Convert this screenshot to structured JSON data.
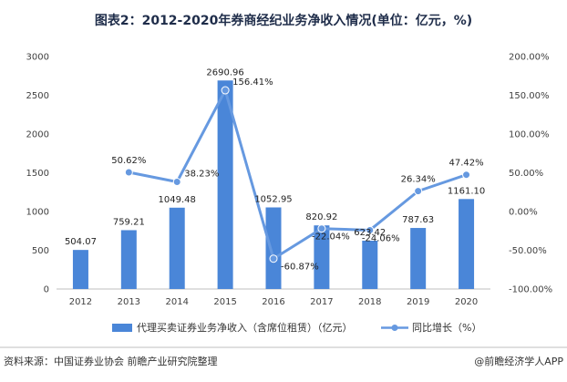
{
  "chart_data": {
    "type": "bar",
    "title": "图表2：2012-2020年券商经纪业务净收入情况(单位：亿元，%)",
    "categories": [
      "2012",
      "2013",
      "2014",
      "2015",
      "2016",
      "2017",
      "2018",
      "2019",
      "2020"
    ],
    "series": [
      {
        "name": "代理买卖证券业务净收入（含席位租赁）（亿元）",
        "type": "bar",
        "axis": "left",
        "values": [
          504.07,
          759.21,
          1049.48,
          2690.96,
          1052.95,
          820.92,
          623.42,
          787.63,
          1161.1
        ],
        "labels": [
          "504.07",
          "759.21",
          "1049.48",
          "2690.96",
          "1052.95",
          "820.92",
          "623.42",
          "787.63",
          "1161.10"
        ]
      },
      {
        "name": "同比增长（%）",
        "type": "line",
        "axis": "right",
        "values": [
          null,
          50.62,
          38.23,
          156.41,
          -60.87,
          -22.04,
          -24.06,
          26.34,
          47.42
        ],
        "labels": [
          null,
          "50.62%",
          "38.23%",
          "156.41%",
          "-60.87%",
          "-22.04%",
          "-24.06%",
          "26.34%",
          "47.42%"
        ]
      }
    ],
    "y_left": {
      "min": 0,
      "max": 3000,
      "ticks": [
        "0",
        "500",
        "1000",
        "1500",
        "2000",
        "2500",
        "3000"
      ]
    },
    "y_right": {
      "min": -100,
      "max": 200,
      "ticks": [
        "-100.00%",
        "-50.00%",
        "0.00%",
        "50.00%",
        "100.00%",
        "150.00%",
        "200.00%"
      ]
    },
    "grid": false,
    "legend_position": "bottom",
    "colors": {
      "bar": "#4a86d8",
      "line": "#6699e0",
      "title": "#1f2d4a"
    }
  },
  "footer": {
    "source": "资料来源：中国证券业协会 前瞻产业研究院整理",
    "brand": "@前瞻经济学人APP"
  }
}
